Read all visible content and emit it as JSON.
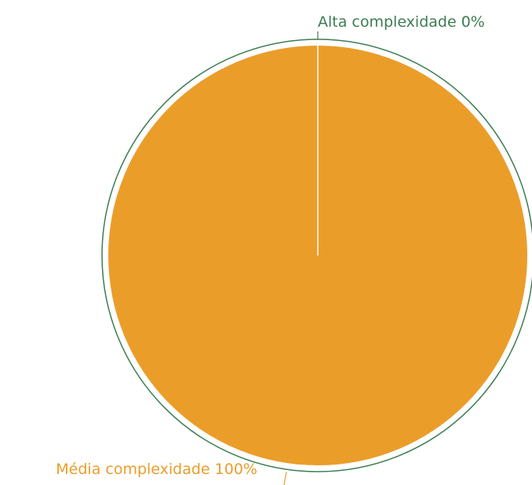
{
  "chart_data": {
    "type": "pie",
    "categories": [
      "Alta complexidade",
      "Média complexidade"
    ],
    "values": [
      0,
      100
    ],
    "value_labels": [
      "0%",
      "100%"
    ],
    "colors": [
      "#3c7d52",
      "#eb9d2a"
    ]
  }
}
